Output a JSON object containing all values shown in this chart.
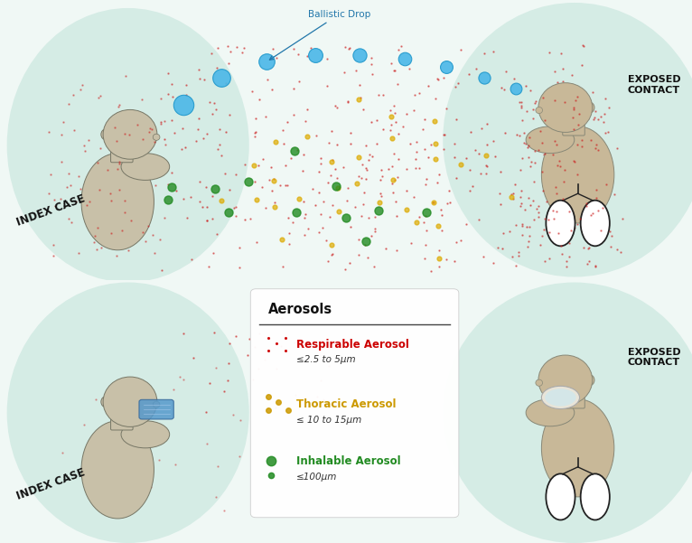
{
  "bg_color": "#f0f8f5",
  "panel_bg": "#cce8e0",
  "ballistic_color": "#4db8e8",
  "ballistic_edge": "#2299cc",
  "red_dot_color": "#cc2222",
  "yellow_dot_color": "#ddaa00",
  "green_dot_color": "#228B22",
  "white_bg": "#ffffff",
  "figure_width": 7.66,
  "figure_height": 6.01,
  "aerosols_title": "Aerosols",
  "index_label": "INDEX CASE",
  "exposed_label": "EXPOSED\nCONTACT",
  "ballistic_label": "Ballistic Drop",
  "legend_items": [
    {
      "label": "Respirable Aerosol",
      "sublabel": "≤2.5 to 5μm",
      "color": "#cc0000"
    },
    {
      "label": "Thoracic Aerosol",
      "sublabel": "≤ 10 to 15μm",
      "color": "#cc9900"
    },
    {
      "label": "Inhalable Aerosol",
      "sublabel": "≤100μm",
      "color": "#228B22"
    }
  ],
  "skin_left": "#c8c0a8",
  "skin_right": "#c8b898",
  "lung_face": "#ffffff",
  "lung_edge": "#222222"
}
